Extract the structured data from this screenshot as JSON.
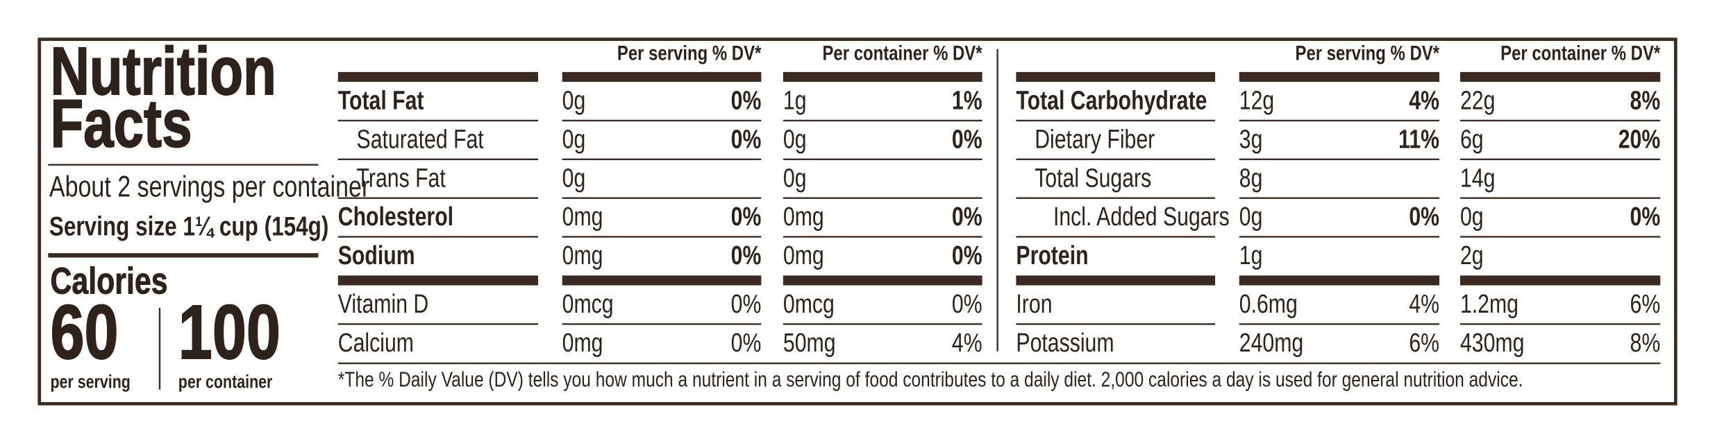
{
  "title_lines": [
    "Nutrition",
    "Facts"
  ],
  "servings": "About 2 servings per container",
  "serving_size": "Serving size 1¼ cup (154g)",
  "calories": {
    "label": "Calories",
    "per_serving": 60,
    "per_serving_label": "per serving",
    "per_container": 100,
    "per_container_label": "per container"
  },
  "tables": [
    {
      "headers": [
        "Per serving % DV*",
        "Per container % DV*"
      ],
      "rows": [
        {
          "name": "Total Fat",
          "bold": true,
          "indent": 0,
          "dv_bold": true,
          "thick": false,
          "serving": [
            "0g",
            "0%"
          ],
          "container": [
            "1g",
            "1%"
          ]
        },
        {
          "name": "Saturated Fat",
          "bold": false,
          "indent": 1,
          "dv_bold": true,
          "thick": false,
          "serving": [
            "0g",
            "0%"
          ],
          "container": [
            "0g",
            "0%"
          ]
        },
        {
          "name": "Trans Fat",
          "bold": false,
          "indent": 1,
          "dv_bold": true,
          "thick": false,
          "serving": [
            "0g",
            null
          ],
          "container": [
            "0g",
            null
          ]
        },
        {
          "name": "Cholesterol",
          "bold": true,
          "indent": 0,
          "dv_bold": true,
          "thick": false,
          "serving": [
            "0mg",
            "0%"
          ],
          "container": [
            "0mg",
            "0%"
          ]
        },
        {
          "name": "Sodium",
          "bold": true,
          "indent": 0,
          "dv_bold": true,
          "thick": false,
          "serving": [
            "0mg",
            "0%"
          ],
          "container": [
            "0mg",
            "0%"
          ]
        },
        {
          "name": "Vitamin D",
          "bold": false,
          "indent": 0,
          "dv_bold": false,
          "thick": true,
          "serving": [
            "0mcg",
            "0%"
          ],
          "container": [
            "0mcg",
            "0%"
          ]
        },
        {
          "name": "Calcium",
          "bold": false,
          "indent": 0,
          "dv_bold": false,
          "thick": false,
          "serving": [
            "0mg",
            "0%"
          ],
          "container": [
            "50mg",
            "4%"
          ]
        }
      ]
    },
    {
      "headers": [
        "Per serving % DV*",
        "Per container % DV*"
      ],
      "rows": [
        {
          "name": "Total Carbohydrate",
          "bold": true,
          "indent": 0,
          "dv_bold": true,
          "thick": false,
          "serving": [
            "12g",
            "4%"
          ],
          "container": [
            "22g",
            "8%"
          ]
        },
        {
          "name": "Dietary Fiber",
          "bold": false,
          "indent": 1,
          "dv_bold": true,
          "thick": false,
          "serving": [
            "3g",
            "11%"
          ],
          "container": [
            "6g",
            "20%"
          ]
        },
        {
          "name": "Total Sugars",
          "bold": false,
          "indent": 1,
          "dv_bold": true,
          "thick": false,
          "serving": [
            "8g",
            null
          ],
          "container": [
            "14g",
            null
          ]
        },
        {
          "name": "Incl. Added Sugars",
          "bold": false,
          "indent": 2,
          "dv_bold": true,
          "thick": false,
          "serving": [
            "0g",
            "0%"
          ],
          "container": [
            "0g",
            "0%"
          ]
        },
        {
          "name": "Protein",
          "bold": true,
          "indent": 0,
          "dv_bold": true,
          "thick": false,
          "serving": [
            "1g",
            null
          ],
          "container": [
            "2g",
            null
          ]
        },
        {
          "name": "Iron",
          "bold": false,
          "indent": 0,
          "dv_bold": false,
          "thick": true,
          "serving": [
            "0.6mg",
            "4%"
          ],
          "container": [
            "1.2mg",
            "6%"
          ]
        },
        {
          "name": "Potassium",
          "bold": false,
          "indent": 0,
          "dv_bold": false,
          "thick": false,
          "serving": [
            "240mg",
            "6%"
          ],
          "container": [
            "430mg",
            "8%"
          ]
        }
      ]
    }
  ],
  "footnote": "*The % Daily Value (DV) tells you how much a nutrient in a serving of food contributes to a daily diet. 2,000 calories a day is used for general nutrition advice."
}
